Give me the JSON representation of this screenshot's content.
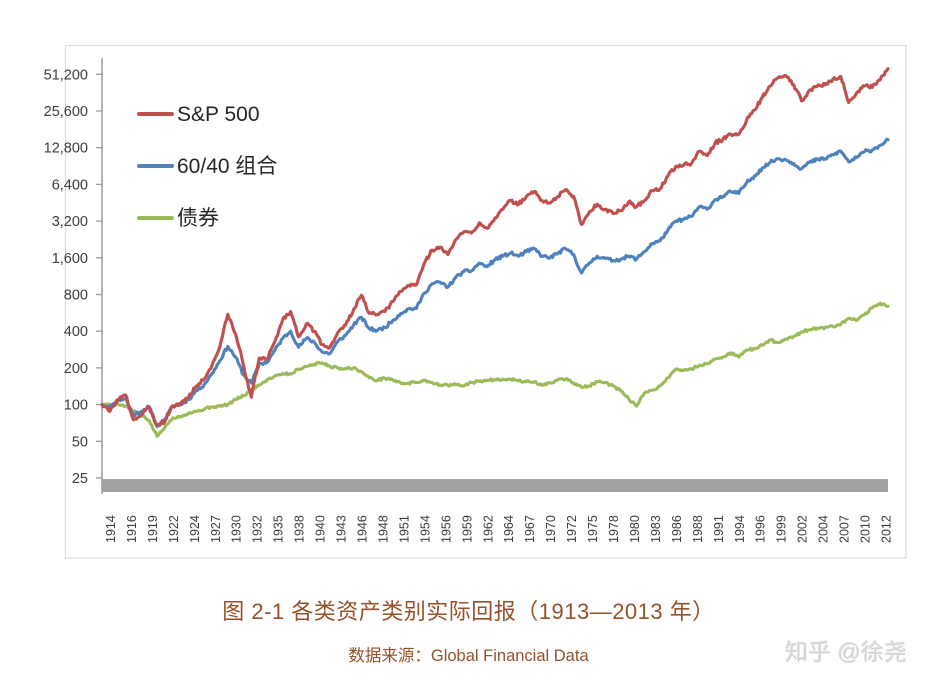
{
  "caption": {
    "title": "图 2-1 各类资产类别实际回报（1913—2013 年）",
    "source": "数据来源：Global Financial Data"
  },
  "watermark": {
    "text": "知乎 @徐尧"
  },
  "colors": {
    "sp500": "#C0504D",
    "portfolio_60_40": "#4F81BD",
    "bonds": "#9BBB59",
    "caption_text": "#96502A",
    "axis_text": "#3d3d3d",
    "axis_line": "#9a9a9a",
    "x_axis_band": "#a2a2a2",
    "frame_border": "#dcdcdc",
    "watermark_text": "#d4d4d4"
  },
  "chart_data": {
    "type": "line",
    "title": "图 2-1 各类资产类别实际回报（1913—2013 年）",
    "xlabel": "",
    "ylabel": "",
    "y_scale": "log2",
    "grid": false,
    "legend_position": "upper-left-inside",
    "x_range": [
      1913,
      2013
    ],
    "y_tick_labels": [
      "51,200",
      "25,600",
      "12,800",
      "6,400",
      "3,200",
      "1,600",
      "800",
      "400",
      "200",
      "100",
      "50",
      "25"
    ],
    "y_tick_values": [
      51200,
      25600,
      12800,
      6400,
      3200,
      1600,
      800,
      400,
      200,
      100,
      50,
      25
    ],
    "x_tick_labels": [
      "1914",
      "1916",
      "1919",
      "1922",
      "1924",
      "1927",
      "1930",
      "1932",
      "1935",
      "1938",
      "1940",
      "1943",
      "1946",
      "1948",
      "1951",
      "1954",
      "1956",
      "1959",
      "1962",
      "1964",
      "1967",
      "1970",
      "1972",
      "1975",
      "1978",
      "1980",
      "1983",
      "1986",
      "1988",
      "1991",
      "1994",
      "1996",
      "1999",
      "2002",
      "2004",
      "2007",
      "2010",
      "2012"
    ],
    "x_years_start": 1913,
    "x_years_step": 1,
    "series": [
      {
        "id": "sp500",
        "name": "S&P 500",
        "color": "#C0504D",
        "values": [
          100,
          88,
          110,
          120,
          75,
          82,
          95,
          68,
          73,
          98,
          102,
          115,
          142,
          162,
          210,
          300,
          550,
          380,
          210,
          115,
          240,
          235,
          330,
          500,
          580,
          360,
          460,
          400,
          310,
          295,
          390,
          450,
          600,
          790,
          560,
          545,
          580,
          700,
          850,
          950,
          960,
          1450,
          1850,
          1950,
          1700,
          2250,
          2600,
          2550,
          3100,
          2800,
          3400,
          4000,
          4700,
          4400,
          5100,
          5600,
          4700,
          4500,
          5100,
          5800,
          5100,
          3000,
          3800,
          4400,
          4000,
          3700,
          3900,
          4600,
          4200,
          4700,
          5700,
          5900,
          7500,
          9000,
          9200,
          9500,
          12000,
          11000,
          14000,
          15000,
          16500,
          16500,
          21500,
          26000,
          33000,
          41000,
          48000,
          50000,
          42000,
          31000,
          38000,
          41000,
          42000,
          47000,
          49000,
          30000,
          36000,
          41000,
          40000,
          46000,
          57000
        ]
      },
      {
        "id": "portfolio6040",
        "name": "60/40 组合",
        "color": "#4F81BD",
        "values": [
          100,
          95,
          108,
          112,
          82,
          88,
          96,
          66,
          76,
          97,
          100,
          110,
          130,
          146,
          180,
          230,
          300,
          245,
          175,
          150,
          215,
          222,
          280,
          350,
          400,
          295,
          350,
          325,
          270,
          262,
          330,
          370,
          450,
          520,
          420,
          405,
          430,
          490,
          560,
          610,
          615,
          820,
          980,
          1010,
          920,
          1100,
          1230,
          1250,
          1450,
          1350,
          1550,
          1650,
          1750,
          1650,
          1800,
          1900,
          1650,
          1600,
          1750,
          1900,
          1700,
          1200,
          1450,
          1650,
          1580,
          1520,
          1560,
          1650,
          1560,
          1800,
          2100,
          2200,
          2700,
          3200,
          3300,
          3500,
          4200,
          4000,
          4800,
          5100,
          5600,
          5400,
          6600,
          7500,
          8700,
          9700,
          10400,
          10200,
          9500,
          8600,
          9700,
          10200,
          10400,
          11200,
          12000,
          9800,
          10600,
          11900,
          12300,
          13400,
          14900
        ]
      },
      {
        "id": "bonds",
        "name": "债券",
        "color": "#9BBB59",
        "values": [
          100,
          100,
          102,
          97,
          88,
          82,
          74,
          55,
          65,
          78,
          80,
          85,
          88,
          92,
          96,
          97,
          100,
          110,
          118,
          132,
          145,
          160,
          172,
          180,
          178,
          196,
          206,
          215,
          220,
          206,
          200,
          198,
          200,
          186,
          166,
          158,
          165,
          160,
          150,
          150,
          152,
          158,
          152,
          145,
          144,
          146,
          142,
          152,
          155,
          158,
          160,
          162,
          162,
          157,
          154,
          154,
          144,
          150,
          160,
          162,
          151,
          139,
          142,
          154,
          151,
          142,
          129,
          112,
          97,
          124,
          131,
          142,
          166,
          196,
          190,
          196,
          210,
          216,
          236,
          246,
          266,
          245,
          280,
          287,
          307,
          340,
          322,
          345,
          362,
          395,
          410,
          424,
          428,
          436,
          455,
          510,
          490,
          545,
          620,
          680,
          640
        ]
      }
    ]
  }
}
